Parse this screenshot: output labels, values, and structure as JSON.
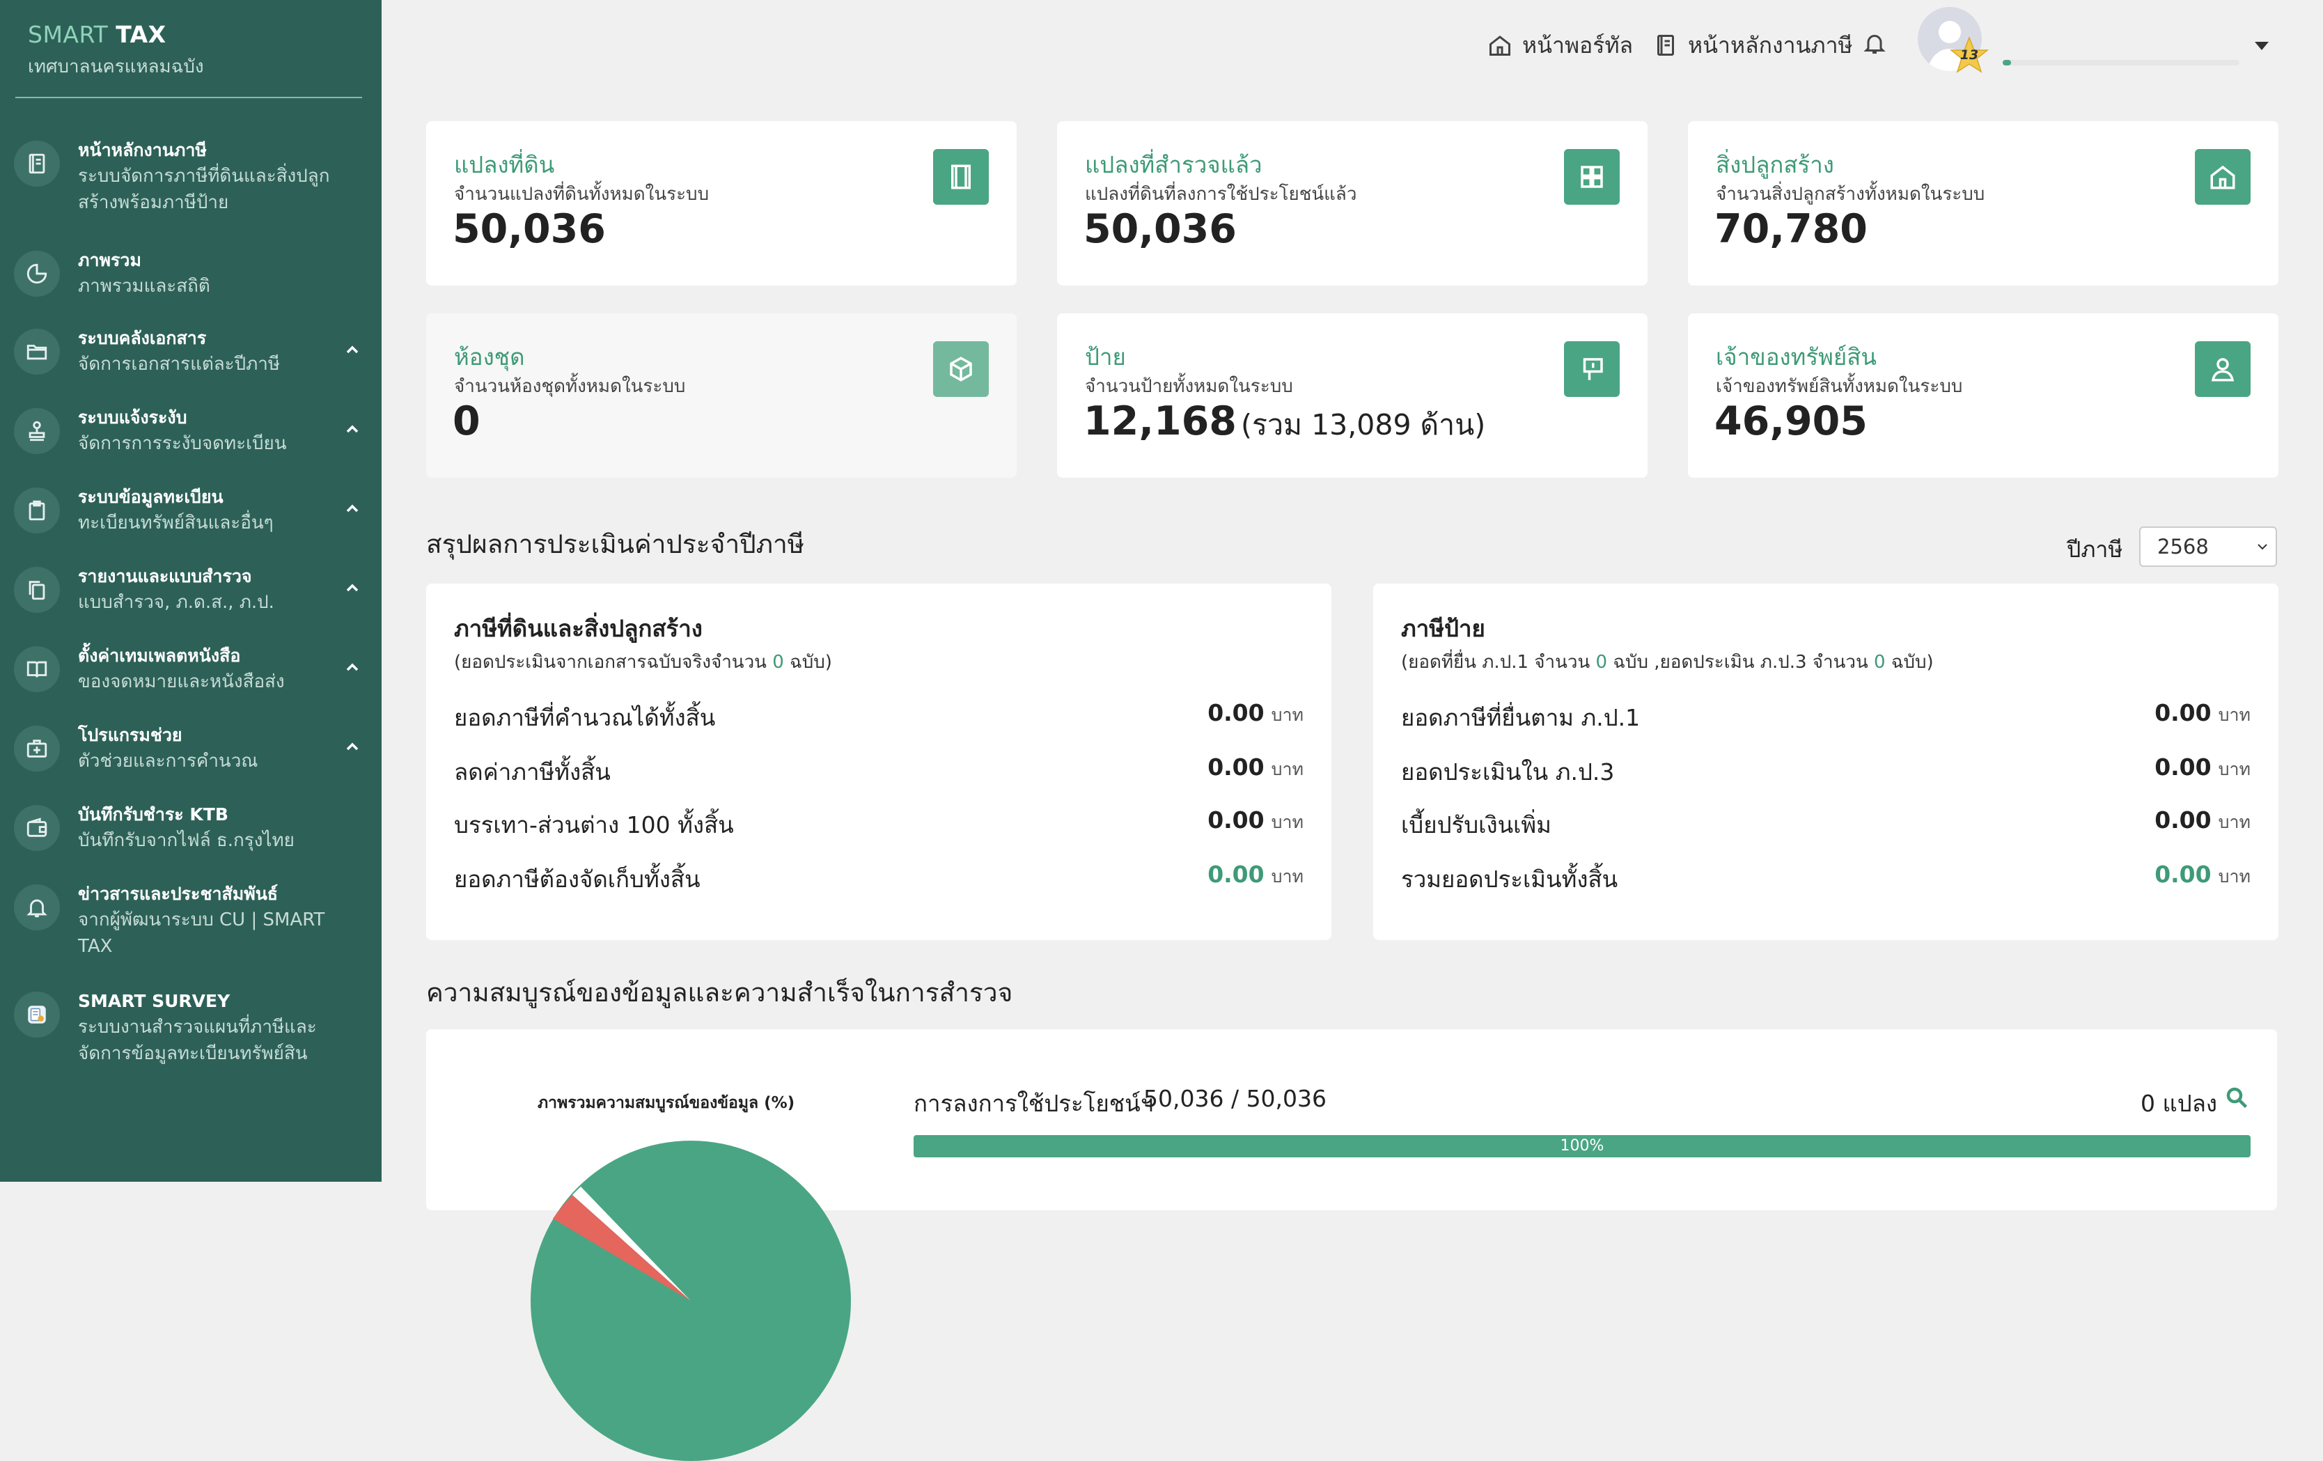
{
  "sidebar": {
    "brand": {
      "smart": "SMART",
      "tax": "TAX",
      "subtitle": "เทศบาลนครแหลมฉบัง"
    },
    "items": [
      {
        "title": "หน้าหลักงานภาษี",
        "subtitle": "ระบบจัดการภาษีที่ดินและสิ่งปลูกสร้างพร้อมภาษีป้าย",
        "icon": "book-icon",
        "expandable": false
      },
      {
        "title": "ภาพรวม",
        "subtitle": "ภาพรวมและสถิติ",
        "icon": "pie-chart-icon",
        "expandable": false
      },
      {
        "title": "ระบบคลังเอกสาร",
        "subtitle": "จัดการเอกสารแต่ละปีภาษี",
        "icon": "folder-icon",
        "expandable": true
      },
      {
        "title": "ระบบแจ้งระงับ",
        "subtitle": "จัดการการระงับจดทะเบียน",
        "icon": "stamp-icon",
        "expandable": true
      },
      {
        "title": "ระบบข้อมูลทะเบียน",
        "subtitle": "ทะเบียนทรัพย์สินและอื่นๆ",
        "icon": "clipboard-icon",
        "expandable": true
      },
      {
        "title": "รายงานและแบบสำรวจ",
        "subtitle": "แบบสำรวจ, ภ.ด.ส., ภ.ป.",
        "icon": "copy-icon",
        "expandable": true
      },
      {
        "title": "ตั้งค่าเทมเพลตหนังสือ",
        "subtitle": "ของจดหมายและหนังสือส่ง",
        "icon": "open-book-icon",
        "expandable": true
      },
      {
        "title": "โปรแกรมช่วย",
        "subtitle": "ตัวช่วยและการคำนวณ",
        "icon": "medical-kit-icon",
        "expandable": true
      },
      {
        "title": "บันทึกรับชำระ KTB",
        "subtitle": "บันทึกรับจากไฟล์ ธ.กรุงไทย",
        "icon": "wallet-icon",
        "expandable": false
      },
      {
        "title": "ข่าวสารและประชาสัมพันธ์",
        "subtitle": "จากผู้พัฒนาระบบ CU | SMART TAX",
        "icon": "bell-icon",
        "expandable": false
      },
      {
        "title": "SMART SURVEY",
        "subtitle": "ระบบงานสำรวจแผนที่ภาษีและจัดการข้อมูลทะเบียนทรัพย์สิน",
        "icon": "survey-app-icon",
        "expandable": false
      }
    ]
  },
  "topbar": {
    "portal_label": "หน้าพอร์ทัล",
    "tax_home_label": "หน้าหลักงานภาษี",
    "user_level": "13",
    "xp_progress": 0.035
  },
  "stats": [
    {
      "title": "แปลงที่ดิน",
      "subtitle": "จำนวนแปลงที่ดินทั้งหมดในระบบ",
      "value": "50,036",
      "extra": "",
      "icon": "document-icon"
    },
    {
      "title": "แปลงที่สำรวจแล้ว",
      "subtitle": "แปลงที่ดินที่ลงการใช้ประโยชน์แล้ว",
      "value": "50,036",
      "extra": "",
      "icon": "grid-icon"
    },
    {
      "title": "สิ่งปลูกสร้าง",
      "subtitle": "จำนวนสิ่งปลูกสร้างทั้งหมดในระบบ",
      "value": "70,780",
      "extra": "",
      "icon": "house-icon"
    },
    {
      "title": "ห้องชุด",
      "subtitle": "จำนวนห้องชุดทั้งหมดในระบบ",
      "value": "0",
      "extra": "",
      "icon": "cube-icon"
    },
    {
      "title": "ป้าย",
      "subtitle": "จำนวนป้ายทั้งหมดในระบบ",
      "value": "12,168",
      "extra": "(รวม 13,089 ด้าน)",
      "icon": "sign-icon"
    },
    {
      "title": "เจ้าของทรัพย์สิน",
      "subtitle": "เจ้าของทรัพย์สินทั้งหมดในระบบ",
      "value": "46,905",
      "extra": "",
      "icon": "user-icon"
    }
  ],
  "assessment": {
    "title": "สรุปผลการประเมินค่าประจำปีภาษี",
    "year_label": "ปีภาษี",
    "year_value": "2568",
    "unit": "บาท",
    "land": {
      "title": "ภาษีที่ดินและสิ่งปลูกสร้าง",
      "note_prefix": "(ยอดประเมินจากเอกสารฉบับจริงจำนวน ",
      "note_count": "0",
      "note_suffix": " ฉบับ)",
      "rows": [
        {
          "label": "ยอดภาษีที่คำนวณได้ทั้งสิ้น",
          "amount": "0.00"
        },
        {
          "label": "ลดค่าภาษีทั้งสิ้น",
          "amount": "0.00"
        },
        {
          "label": "บรรเทา-ส่วนต่าง 100 ทั้งสิ้น",
          "amount": "0.00"
        },
        {
          "label": "ยอดภาษีต้องจัดเก็บทั้งสิ้น",
          "amount": "0.00"
        }
      ]
    },
    "sign": {
      "title": "ภาษีป้าย",
      "note_a": "(ยอดที่ยื่น ภ.ป.1 จำนวน ",
      "note_count1": "0",
      "note_b": " ฉบับ ,ยอดประเมิน ภ.ป.3 จำนวน ",
      "note_count2": "0",
      "note_c": " ฉบับ)",
      "rows": [
        {
          "label": "ยอดภาษีที่ยื่นตาม ภ.ป.1",
          "amount": "0.00"
        },
        {
          "label": "ยอดประเมินใน ภ.ป.3",
          "amount": "0.00"
        },
        {
          "label": "เบี้ยปรับเงินเพิ่ม",
          "amount": "0.00"
        },
        {
          "label": "รวมยอดประเมินทั้งสิ้น",
          "amount": "0.00"
        }
      ]
    }
  },
  "completeness": {
    "title": "ความสมบูรณ์ของข้อมูลและความสำเร็จในการสำรวจ",
    "chart_label": "ภาพรวมความสมบูรณ์ของข้อมูล (%)",
    "usage_label": "การลงการใช้ประโยชน์ฯ",
    "usage_count": "50,036 / 50,036",
    "plots_label": "0 แปลง",
    "progress_text": "100%",
    "progress_value": 1.0
  },
  "colors": {
    "sidebar": "#2d6158",
    "accent": "#4aa584",
    "accent_text": "#3e9a78",
    "background": "#f0f0f0"
  }
}
